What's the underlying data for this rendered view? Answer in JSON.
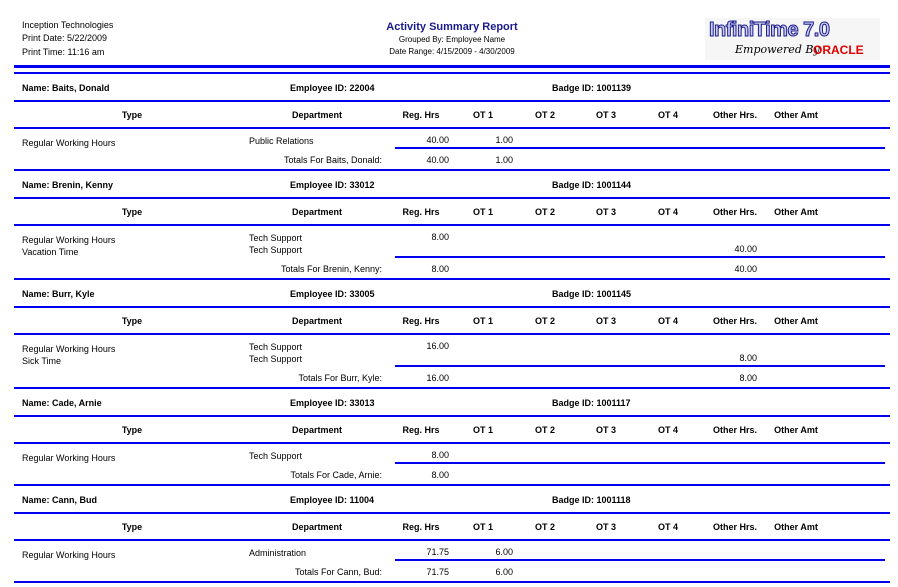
{
  "header": {
    "company": "Inception Technologies",
    "print_date": "Print Date: 5/22/2009",
    "print_time": "Print Time: 11:16 am",
    "title": "Activity Summary Report",
    "grouped_by": "Grouped By:  Employee Name",
    "date_range": "Date Range:  4/15/2009 - 4/30/2009",
    "logo_main": "InfiniTime 7.0",
    "logo_sub": "Empowered By",
    "logo_brand": "ORACLE"
  },
  "columns": [
    "Type",
    "Department",
    "Reg. Hrs",
    "OT 1",
    "OT 2",
    "OT 3",
    "OT 4",
    "Other Hrs.",
    "Other Amt"
  ],
  "colors": {
    "rule": "#0000ee",
    "title": "#1a1a8c",
    "oracle": "#e00000"
  },
  "employees": [
    {
      "name": "Name: Baits, Donald",
      "employee_id": "Employee ID: 22004",
      "badge_id": "Badge ID:  1001139",
      "rows": [
        {
          "type": "Regular Working Hours",
          "dept": "Public Relations",
          "reg": "40.00",
          "ot1": "1.00",
          "other": ""
        }
      ],
      "totals": {
        "label": "Totals For Baits, Donald:",
        "reg": "40.00",
        "ot1": "1.00",
        "other": ""
      }
    },
    {
      "name": "Name: Brenin, Kenny",
      "employee_id": "Employee ID: 33012",
      "badge_id": "Badge ID:  1001144",
      "rows": [
        {
          "type": "Regular Working Hours",
          "dept": "Tech Support",
          "reg": "8.00",
          "ot1": "",
          "other": ""
        },
        {
          "type": "Vacation Time",
          "dept": "Tech Support",
          "reg": "",
          "ot1": "",
          "other": "40.00"
        }
      ],
      "totals": {
        "label": "Totals For Brenin, Kenny:",
        "reg": "8.00",
        "ot1": "",
        "other": "40.00"
      }
    },
    {
      "name": "Name: Burr, Kyle",
      "employee_id": "Employee ID: 33005",
      "badge_id": "Badge ID:  1001145",
      "rows": [
        {
          "type": "Regular Working Hours",
          "dept": "Tech Support",
          "reg": "16.00",
          "ot1": "",
          "other": ""
        },
        {
          "type": "Sick Time",
          "dept": "Tech Support",
          "reg": "",
          "ot1": "",
          "other": "8.00"
        }
      ],
      "totals": {
        "label": "Totals For Burr, Kyle:",
        "reg": "16.00",
        "ot1": "",
        "other": "8.00"
      }
    },
    {
      "name": "Name: Cade, Arnie",
      "employee_id": "Employee ID: 33013",
      "badge_id": "Badge ID:  1001117",
      "rows": [
        {
          "type": "Regular Working Hours",
          "dept": "Tech Support",
          "reg": "8.00",
          "ot1": "",
          "other": ""
        }
      ],
      "totals": {
        "label": "Totals For Cade, Arnie:",
        "reg": "8.00",
        "ot1": "",
        "other": ""
      }
    },
    {
      "name": "Name: Cann, Bud",
      "employee_id": "Employee ID: 11004",
      "badge_id": "Badge ID:  1001118",
      "rows": [
        {
          "type": "Regular Working Hours",
          "dept": "Administration",
          "reg": "71.75",
          "ot1": "6.00",
          "other": ""
        }
      ],
      "totals": {
        "label": "Totals For Cann, Bud:",
        "reg": "71.75",
        "ot1": "6.00",
        "other": ""
      }
    }
  ]
}
